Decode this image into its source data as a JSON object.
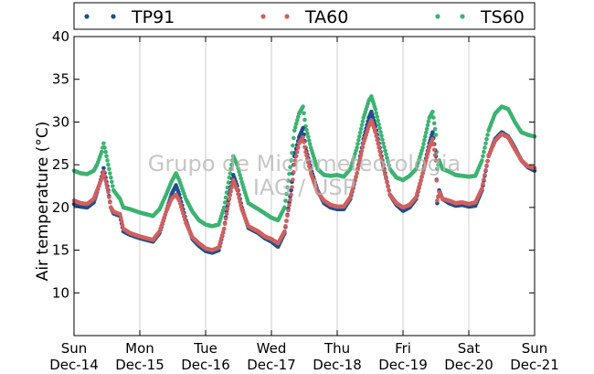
{
  "chart_data": {
    "type": "scatter",
    "ylabel": "Air temperature (°C)",
    "ylim": [
      5,
      40
    ],
    "yticks": [
      10,
      15,
      20,
      25,
      30,
      35,
      40
    ],
    "xticks": [
      {
        "day": "Sun",
        "date": "Dec-14"
      },
      {
        "day": "Mon",
        "date": "Dec-15"
      },
      {
        "day": "Tue",
        "date": "Dec-16"
      },
      {
        "day": "Wed",
        "date": "Dec-17"
      },
      {
        "day": "Thu",
        "date": "Dec-18"
      },
      {
        "day": "Fri",
        "date": "Dec-19"
      },
      {
        "day": "Sat",
        "date": "Dec-20"
      },
      {
        "day": "Sun",
        "date": "Dec-21"
      }
    ],
    "grid": "vertical",
    "legend": "top",
    "watermark": [
      "Grupo de Micrometeorologia",
      "IAG / USP"
    ],
    "series": [
      {
        "name": "TP91",
        "color": "#1f4e8c",
        "points": [
          [
            0,
            20.4
          ],
          [
            0.1,
            20.1
          ],
          [
            0.2,
            20
          ],
          [
            0.3,
            20.6
          ],
          [
            0.35,
            21.8
          ],
          [
            0.42,
            23.6
          ],
          [
            0.45,
            24.6
          ],
          [
            0.48,
            23.5
          ],
          [
            0.52,
            22
          ],
          [
            0.56,
            20
          ],
          [
            0.6,
            19.3
          ],
          [
            0.7,
            19
          ],
          [
            0.75,
            17.2
          ],
          [
            0.85,
            16.8
          ],
          [
            1,
            16.4
          ],
          [
            1.1,
            16.2
          ],
          [
            1.2,
            16
          ],
          [
            1.3,
            17
          ],
          [
            1.4,
            19.5
          ],
          [
            1.48,
            21.5
          ],
          [
            1.55,
            22.6
          ],
          [
            1.6,
            21.5
          ],
          [
            1.7,
            18.5
          ],
          [
            1.8,
            16.3
          ],
          [
            1.9,
            15.5
          ],
          [
            2,
            14.9
          ],
          [
            2.1,
            14.7
          ],
          [
            2.2,
            15
          ],
          [
            2.28,
            17.5
          ],
          [
            2.36,
            21.5
          ],
          [
            2.42,
            23.8
          ],
          [
            2.48,
            22.5
          ],
          [
            2.55,
            20
          ],
          [
            2.65,
            17.6
          ],
          [
            2.8,
            17
          ],
          [
            2.9,
            16.4
          ],
          [
            3,
            16
          ],
          [
            3.1,
            15.4
          ],
          [
            3.2,
            17
          ],
          [
            3.3,
            22
          ],
          [
            3.35,
            26
          ],
          [
            3.42,
            28.2
          ],
          [
            3.48,
            29.3
          ],
          [
            3.52,
            27
          ],
          [
            3.6,
            24.5
          ],
          [
            3.7,
            22
          ],
          [
            3.8,
            20.5
          ],
          [
            3.9,
            20
          ],
          [
            4,
            19.8
          ],
          [
            4.1,
            19.8
          ],
          [
            4.2,
            21
          ],
          [
            4.3,
            24
          ],
          [
            4.4,
            28
          ],
          [
            4.48,
            30.5
          ],
          [
            4.52,
            31.2
          ],
          [
            4.58,
            29.5
          ],
          [
            4.7,
            25
          ],
          [
            4.8,
            21.5
          ],
          [
            4.9,
            20.3
          ],
          [
            5,
            19.6
          ],
          [
            5.1,
            20
          ],
          [
            5.2,
            21
          ],
          [
            5.3,
            24
          ],
          [
            5.4,
            27.5
          ],
          [
            5.45,
            28.8
          ],
          [
            5.5,
            26
          ],
          [
            5.52,
            20.5
          ],
          [
            5.55,
            22
          ],
          [
            5.6,
            21
          ],
          [
            5.7,
            20.5
          ],
          [
            5.8,
            20.2
          ],
          [
            5.9,
            20.3
          ],
          [
            6,
            20.1
          ],
          [
            6.1,
            20.2
          ],
          [
            6.2,
            22
          ],
          [
            6.3,
            26
          ],
          [
            6.4,
            28
          ],
          [
            6.5,
            28.8
          ],
          [
            6.6,
            28.3
          ],
          [
            6.7,
            27
          ],
          [
            6.8,
            25.5
          ],
          [
            6.9,
            24.7
          ],
          [
            7,
            24.3
          ]
        ]
      },
      {
        "name": "TA60",
        "color": "#d0605e",
        "points": [
          [
            0,
            20.8
          ],
          [
            0.1,
            20.5
          ],
          [
            0.2,
            20.4
          ],
          [
            0.3,
            21
          ],
          [
            0.35,
            22
          ],
          [
            0.42,
            23.4
          ],
          [
            0.45,
            24.2
          ],
          [
            0.48,
            23.2
          ],
          [
            0.52,
            21.8
          ],
          [
            0.56,
            20
          ],
          [
            0.6,
            19.5
          ],
          [
            0.7,
            19.2
          ],
          [
            0.75,
            17.5
          ],
          [
            0.85,
            17
          ],
          [
            1,
            16.6
          ],
          [
            1.1,
            16.4
          ],
          [
            1.2,
            16.2
          ],
          [
            1.3,
            17.2
          ],
          [
            1.4,
            19.5
          ],
          [
            1.48,
            21
          ],
          [
            1.55,
            21.5
          ],
          [
            1.6,
            20.8
          ],
          [
            1.7,
            18.2
          ],
          [
            1.8,
            16.5
          ],
          [
            1.9,
            15.8
          ],
          [
            2,
            15.2
          ],
          [
            2.1,
            15
          ],
          [
            2.2,
            15.3
          ],
          [
            2.28,
            17.5
          ],
          [
            2.36,
            21
          ],
          [
            2.42,
            23.2
          ],
          [
            2.48,
            22
          ],
          [
            2.55,
            19.8
          ],
          [
            2.65,
            17.8
          ],
          [
            2.8,
            17.2
          ],
          [
            2.9,
            16.6
          ],
          [
            3,
            16.3
          ],
          [
            3.1,
            15.8
          ],
          [
            3.2,
            17.2
          ],
          [
            3.3,
            21.5
          ],
          [
            3.35,
            25
          ],
          [
            3.42,
            27.5
          ],
          [
            3.48,
            28.2
          ],
          [
            3.52,
            26.5
          ],
          [
            3.6,
            24
          ],
          [
            3.7,
            21.8
          ],
          [
            3.8,
            20.8
          ],
          [
            3.9,
            20.3
          ],
          [
            4,
            20.1
          ],
          [
            4.1,
            20.1
          ],
          [
            4.2,
            21.2
          ],
          [
            4.3,
            24
          ],
          [
            4.4,
            27.5
          ],
          [
            4.48,
            29.5
          ],
          [
            4.52,
            30.2
          ],
          [
            4.58,
            28.8
          ],
          [
            4.7,
            24.8
          ],
          [
            4.8,
            21.5
          ],
          [
            4.9,
            20.5
          ],
          [
            5,
            20
          ],
          [
            5.1,
            20.3
          ],
          [
            5.2,
            21.2
          ],
          [
            5.3,
            24
          ],
          [
            5.4,
            27
          ],
          [
            5.45,
            28
          ],
          [
            5.5,
            25.5
          ],
          [
            5.52,
            20.8
          ],
          [
            5.55,
            21.8
          ],
          [
            5.6,
            21
          ],
          [
            5.7,
            20.8
          ],
          [
            5.8,
            20.5
          ],
          [
            5.9,
            20.6
          ],
          [
            6,
            20.4
          ],
          [
            6.1,
            20.6
          ],
          [
            6.2,
            22.2
          ],
          [
            6.3,
            26
          ],
          [
            6.4,
            27.8
          ],
          [
            6.5,
            28.6
          ],
          [
            6.6,
            28.2
          ],
          [
            6.7,
            26.8
          ],
          [
            6.8,
            25.5
          ],
          [
            6.9,
            24.8
          ],
          [
            7,
            24.6
          ]
        ]
      },
      {
        "name": "TS60",
        "color": "#3cb371",
        "points": [
          [
            0,
            24.3
          ],
          [
            0.1,
            24
          ],
          [
            0.2,
            23.9
          ],
          [
            0.3,
            24.3
          ],
          [
            0.35,
            25
          ],
          [
            0.42,
            26.5
          ],
          [
            0.45,
            27.5
          ],
          [
            0.48,
            26.5
          ],
          [
            0.52,
            25
          ],
          [
            0.56,
            23.5
          ],
          [
            0.6,
            22
          ],
          [
            0.7,
            21
          ],
          [
            0.75,
            20
          ],
          [
            0.85,
            19.8
          ],
          [
            1,
            19.4
          ],
          [
            1.1,
            19.2
          ],
          [
            1.2,
            19
          ],
          [
            1.3,
            19.8
          ],
          [
            1.4,
            21.5
          ],
          [
            1.48,
            23
          ],
          [
            1.55,
            24
          ],
          [
            1.6,
            23.2
          ],
          [
            1.7,
            21
          ],
          [
            1.8,
            19.5
          ],
          [
            1.9,
            18.5
          ],
          [
            2,
            18
          ],
          [
            2.1,
            17.8
          ],
          [
            2.2,
            18
          ],
          [
            2.28,
            20
          ],
          [
            2.36,
            23.5
          ],
          [
            2.42,
            26
          ],
          [
            2.48,
            25
          ],
          [
            2.55,
            23
          ],
          [
            2.65,
            20.5
          ],
          [
            2.8,
            19.8
          ],
          [
            2.9,
            19.3
          ],
          [
            3,
            18.8
          ],
          [
            3.1,
            18.5
          ],
          [
            3.2,
            20
          ],
          [
            3.3,
            25.5
          ],
          [
            3.35,
            29
          ],
          [
            3.42,
            31
          ],
          [
            3.48,
            31.8
          ],
          [
            3.52,
            29.5
          ],
          [
            3.6,
            27
          ],
          [
            3.7,
            24.5
          ],
          [
            3.8,
            23.8
          ],
          [
            3.9,
            23.7
          ],
          [
            4,
            23.8
          ],
          [
            4.1,
            23.6
          ],
          [
            4.2,
            24.5
          ],
          [
            4.3,
            27
          ],
          [
            4.4,
            30.5
          ],
          [
            4.48,
            32.5
          ],
          [
            4.52,
            33
          ],
          [
            4.58,
            31.5
          ],
          [
            4.7,
            27.5
          ],
          [
            4.8,
            24.5
          ],
          [
            4.9,
            23.5
          ],
          [
            5,
            23.2
          ],
          [
            5.1,
            23.7
          ],
          [
            5.2,
            24.5
          ],
          [
            5.3,
            27
          ],
          [
            5.4,
            30.5
          ],
          [
            5.45,
            31.2
          ],
          [
            5.5,
            28.5
          ],
          [
            5.52,
            24.5
          ],
          [
            5.55,
            25.5
          ],
          [
            5.6,
            24.5
          ],
          [
            5.7,
            24.2
          ],
          [
            5.8,
            23.8
          ],
          [
            5.9,
            23.7
          ],
          [
            6,
            23.6
          ],
          [
            6.1,
            23.7
          ],
          [
            6.2,
            25.5
          ],
          [
            6.3,
            29
          ],
          [
            6.4,
            31
          ],
          [
            6.5,
            31.8
          ],
          [
            6.6,
            31.5
          ],
          [
            6.7,
            30
          ],
          [
            6.8,
            28.8
          ],
          [
            6.9,
            28.5
          ],
          [
            7,
            28.3
          ]
        ]
      }
    ]
  }
}
